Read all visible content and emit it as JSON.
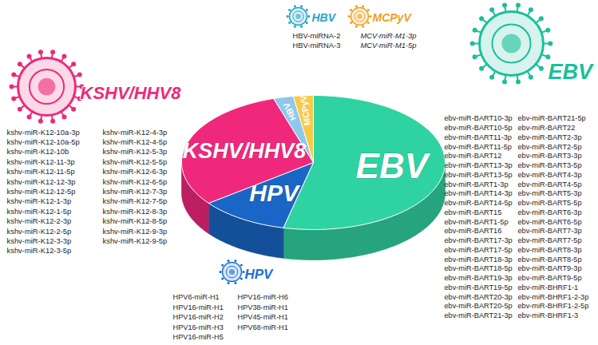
{
  "chart_data": {
    "type": "pie",
    "categories": [
      "EBV",
      "HPV",
      "KSHV/HHV8",
      "HBV",
      "MCPyV"
    ],
    "values": [
      44,
      9,
      25,
      2,
      2
    ],
    "colors": [
      "#2fd3a2",
      "#1a66c6",
      "#f0287c",
      "#8fc8ea",
      "#f7c948"
    ],
    "tick_labels": false,
    "mirna_lists": [
      {
        "virus": "KSHV/HHV8",
        "color": "#ec2a7a",
        "columns": [
          [
            "kshv-miR-K12-10a-3p",
            "kshv-miR-K12-10a-5p",
            "kshv-miR-K12-10b",
            "kshv-miR-K12-11-3p",
            "kshv-miR-K12-11-5p",
            "kshv-miR-K12-12-3p",
            "kshv-miR-K12-12-5p",
            "kshv-miR-K12-1-3p",
            "kshv-miR-K12-1-5p",
            "kshv-miR-K12-2-3p",
            "kshv-miR-K12-2-5p",
            "kshv-miR-K12-3-3p",
            "kshv-miR-K12-3-5p"
          ],
          [
            "kshv-miR-K12-4-3p",
            "kshv-miR-K12-4-5p",
            "kshv-miR-K12-5-3p",
            "kshv-miR-K12-5-5p",
            "kshv-miR-K12-6-3p",
            "kshv-miR-K12-6-5p",
            "kshv-miR-K12-7-3p",
            "kshv-miR-K12-7-5p",
            "kshv-miR-K12-8-3p",
            "kshv-miR-K12-8-5p",
            "kshv-miR-K12-9-3p",
            "kshv-miR-K12-9-5p"
          ]
        ]
      },
      {
        "virus": "HBV",
        "color": "#2aa4c8",
        "columns": [
          [
            "HBV-miRNA-2",
            "HBV-miRNA-3"
          ]
        ]
      },
      {
        "virus": "MCPyV",
        "color": "#f0a020",
        "columns": [
          [
            "MCV-miR-M1-3p",
            "MCV-miR-M1-5p"
          ]
        ]
      },
      {
        "virus": "EBV",
        "color": "#1bbf9a",
        "columns": [
          [
            "ebv-miR-BART10-3p",
            "ebv-miR-BART10-5p",
            "ebv-miR-BART11-3p",
            "ebv-miR-BART11-5p",
            "ebv-miR-BART12",
            "ebv-miR-BART13-3p",
            "ebv-miR-BART13-5p",
            "ebv-miR-BART1-3p",
            "ebv-miR-BART14-3p",
            "ebv-miR-BART14-5p",
            "ebv-miR-BART15",
            "ebv-miR-BART1-5p",
            "ebv-miR-BART16",
            "ebv-miR-BART17-3p",
            "ebv-miR-BART17-5p",
            "ebv-miR-BART18-3p",
            "ebv-miR-BART18-5p",
            "ebv-miR-BART19-3p",
            "ebv-miR-BART19-5p",
            "ebv-miR-BART20-3p",
            "ebv-miR-BART20-5p",
            "ebv-miR-BART21-3p"
          ],
          [
            "ebv-miR-BART21-5p",
            "ebv-miR-BART22",
            "ebv-miR-BART2-3p",
            "ebv-miR-BART2-5p",
            "ebv-miR-BART3-3p",
            "ebv-miR-BART3-5p",
            "ebv-miR-BART4-3p",
            "ebv-miR-BART4-5p",
            "ebv-miR-BART5-3p",
            "ebv-miR-BART5-5p",
            "ebv-miR-BART6-3p",
            "ebv-miR-BART6-5p",
            "ebv-miR-BART7-3p",
            "ebv-miR-BART7-5p",
            "ebv-miR-BART8-3p",
            "ebv-miR-BART8-5p",
            "ebv-miR-BART9-3p",
            "ebv-miR-BART9-5p",
            "ebv-miR-BHRF1-1",
            "ebv-miR-BHRF1-2-3p",
            "ebv-miR-BHRF1-2-5p",
            "ebv-miR-BHRF1-3"
          ]
        ]
      },
      {
        "virus": "HPV",
        "color": "#1a6fd0",
        "columns": [
          [
            "HPV6-miR-H1",
            "HPV16-miR-H1",
            "HPV16-miR-H2",
            "HPV16-miR-H3",
            "HPV16-miR-H5"
          ],
          [
            "HPV16-miR-H6",
            "HPV38-miR-H1",
            "HPV45-miR-H1",
            "HPV68-miR-H1"
          ]
        ]
      }
    ]
  }
}
